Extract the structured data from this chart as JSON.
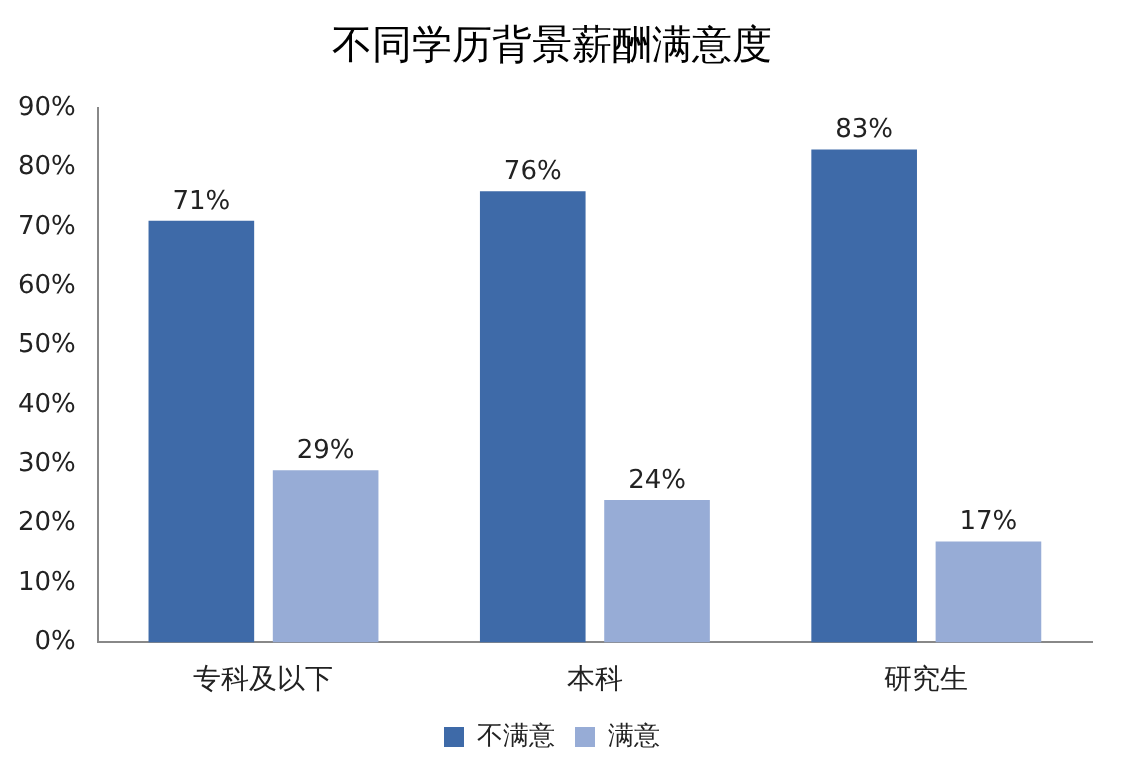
{
  "chart_data": {
    "type": "bar",
    "title": "不同学历背景薪酬满意度",
    "categories": [
      "专科及以下",
      "本科",
      "研究生"
    ],
    "series": [
      {
        "name": "不满意",
        "color": "#3e6aa8",
        "values": [
          71,
          76,
          83
        ],
        "value_labels": [
          "71%",
          "76%",
          "83%"
        ]
      },
      {
        "name": "满意",
        "color": "#97acd6",
        "values": [
          29,
          24,
          17
        ],
        "value_labels": [
          "29%",
          "24%",
          "17%"
        ]
      }
    ],
    "ylim": [
      0,
      90
    ],
    "yticks": [
      {
        "value": 0,
        "label": "0%"
      },
      {
        "value": 10,
        "label": "10%"
      },
      {
        "value": 20,
        "label": "20%"
      },
      {
        "value": 30,
        "label": "30%"
      },
      {
        "value": 40,
        "label": "40%"
      },
      {
        "value": 50,
        "label": "50%"
      },
      {
        "value": 60,
        "label": "60%"
      },
      {
        "value": 70,
        "label": "70%"
      },
      {
        "value": 80,
        "label": "80%"
      },
      {
        "value": 90,
        "label": "90%"
      }
    ],
    "grid": false,
    "legend": "bottom"
  }
}
